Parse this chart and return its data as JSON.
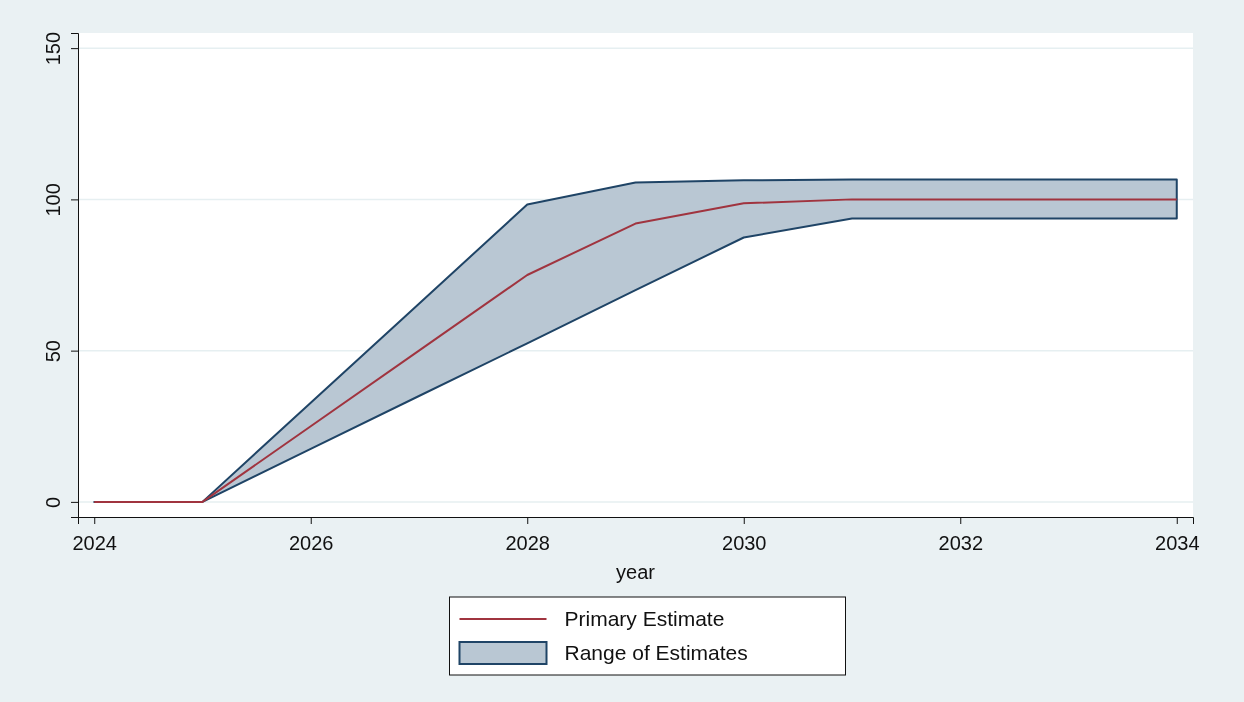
{
  "chart_data": {
    "type": "line",
    "xlabel": "year",
    "x": [
      2024,
      2025,
      2026,
      2027,
      2028,
      2029,
      2030,
      2031,
      2032,
      2033,
      2034
    ],
    "xlim": [
      2023.85,
      2034.15
    ],
    "xticks": [
      2024,
      2026,
      2028,
      2030,
      2032,
      2034
    ],
    "ylim": [
      -5,
      155
    ],
    "yticks": [
      0,
      50,
      100,
      150
    ],
    "grid": "y",
    "legend": "bottom",
    "series": [
      {
        "name": "Primary Estimate",
        "color": "#a0343f",
        "values": [
          0,
          0,
          25,
          50,
          75,
          92,
          98.7,
          100,
          100,
          100,
          100
        ],
        "lower": [
          0,
          0,
          17.5,
          35,
          52.4,
          70,
          87.4,
          93.7,
          93.7,
          93.7,
          93.7
        ],
        "upper": [
          0,
          0,
          32.8,
          65.5,
          98.3,
          105.6,
          106.3,
          106.6,
          106.6,
          106.6,
          106.6
        ]
      },
      {
        "name": "Range of Estimates",
        "type": "area",
        "color": "#b9c7d3",
        "values": [
          null,
          null,
          null,
          null,
          null,
          null,
          null,
          null,
          null,
          null,
          null
        ]
      }
    ]
  }
}
